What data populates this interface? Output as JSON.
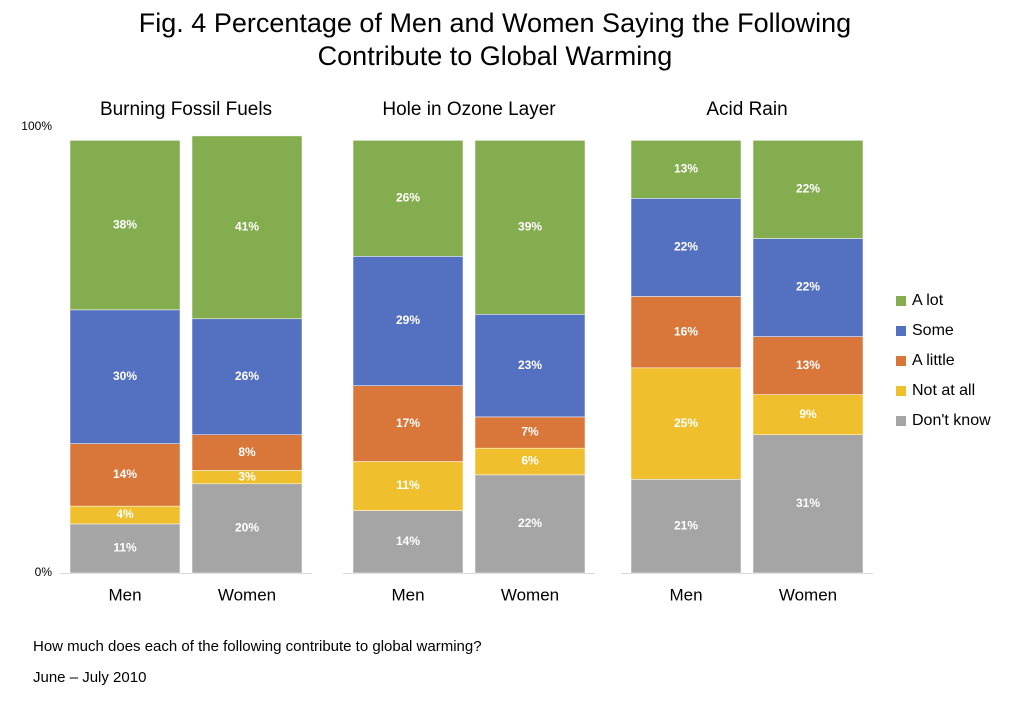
{
  "title": [
    "Fig. 4 Percentage of Men and Women Saying the Following",
    "Contribute to Global Warming"
  ],
  "notes": [
    "How much does each of the following contribute to global warming?",
    "June – July 2010"
  ],
  "chart_data": [
    {
      "type": "bar",
      "stacked": true,
      "title": "Burning Fossil Fuels",
      "categories": [
        "Men",
        "Women"
      ],
      "ylim": [
        0,
        100
      ],
      "yticks": [
        {
          "value": 0,
          "label": "0%"
        },
        {
          "value": 100,
          "label": "100%"
        }
      ],
      "legend": "right",
      "series": [
        {
          "name": "A lot",
          "color": "#84ad4f",
          "values": [
            38,
            41
          ],
          "value_labels": [
            "38%",
            "41%"
          ]
        },
        {
          "name": "Some",
          "color": "#5470c1",
          "values": [
            30,
            26
          ],
          "value_labels": [
            "30%",
            "26%"
          ]
        },
        {
          "name": "A little",
          "color": "#d9773a",
          "values": [
            14,
            8
          ],
          "value_labels": [
            "14%",
            "8%"
          ]
        },
        {
          "name": "Not at all",
          "color": "#f0bf2e",
          "values": [
            4,
            3
          ],
          "value_labels": [
            "4%",
            "3%"
          ]
        },
        {
          "name": "Don't know",
          "color": "#a5a5a5",
          "values": [
            11,
            20
          ],
          "value_labels": [
            "11%",
            "20%"
          ]
        }
      ]
    },
    {
      "type": "bar",
      "stacked": true,
      "title": "Hole in Ozone Layer",
      "categories": [
        "Men",
        "Women"
      ],
      "ylim": [
        0,
        100
      ],
      "series": [
        {
          "name": "A lot",
          "color": "#84ad4f",
          "values": [
            26,
            39
          ],
          "value_labels": [
            "26%",
            "39%"
          ]
        },
        {
          "name": "Some",
          "color": "#5470c1",
          "values": [
            29,
            23
          ],
          "value_labels": [
            "29%",
            "23%"
          ]
        },
        {
          "name": "A little",
          "color": "#d9773a",
          "values": [
            17,
            7
          ],
          "value_labels": [
            "17%",
            "7%"
          ]
        },
        {
          "name": "Not at all",
          "color": "#f0bf2e",
          "values": [
            11,
            6
          ],
          "value_labels": [
            "11%",
            "6%"
          ]
        },
        {
          "name": "Don't know",
          "color": "#a5a5a5",
          "values": [
            14,
            22
          ],
          "value_labels": [
            "14%",
            "22%"
          ]
        }
      ]
    },
    {
      "type": "bar",
      "stacked": true,
      "title": "Acid Rain",
      "categories": [
        "Men",
        "Women"
      ],
      "ylim": [
        0,
        100
      ],
      "series": [
        {
          "name": "A lot",
          "color": "#84ad4f",
          "values": [
            13,
            22
          ],
          "value_labels": [
            "13%",
            "22%"
          ]
        },
        {
          "name": "Some",
          "color": "#5470c1",
          "values": [
            22,
            22
          ],
          "value_labels": [
            "22%",
            "22%"
          ]
        },
        {
          "name": "A little",
          "color": "#d9773a",
          "values": [
            16,
            13
          ],
          "value_labels": [
            "16%",
            "13%"
          ]
        },
        {
          "name": "Not at all",
          "color": "#f0bf2e",
          "values": [
            25,
            9
          ],
          "value_labels": [
            "25%",
            "9%"
          ]
        },
        {
          "name": "Don't know",
          "color": "#a5a5a5",
          "values": [
            21,
            31
          ],
          "value_labels": [
            "21%",
            "31%"
          ]
        }
      ]
    }
  ]
}
